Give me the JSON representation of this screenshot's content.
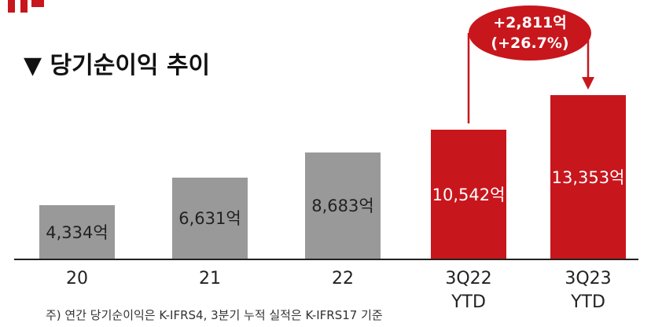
{
  "chart_data": {
    "type": "bar",
    "title": "▼ 당기순이익 추이",
    "categories": [
      "20",
      "21",
      "22",
      "3Q22\nYTD",
      "3Q23\nYTD"
    ],
    "values": [
      4334,
      6631,
      8683,
      10542,
      13353
    ],
    "value_labels": [
      "4,334억",
      "6,631억",
      "8,683억",
      "10,542억",
      "13,353억"
    ],
    "colors": [
      "#999999",
      "#999999",
      "#999999",
      "#c8161d",
      "#c8161d"
    ],
    "value_label_colors": [
      "#222222",
      "#222222",
      "#222222",
      "#ffffff",
      "#ffffff"
    ],
    "annotation": "+2,811억\n(+26.7%)",
    "footnote": "주) 연간 당기순이익은 K-IFRS4, 3분기 누적 실적은 K-IFRS17 기준"
  }
}
